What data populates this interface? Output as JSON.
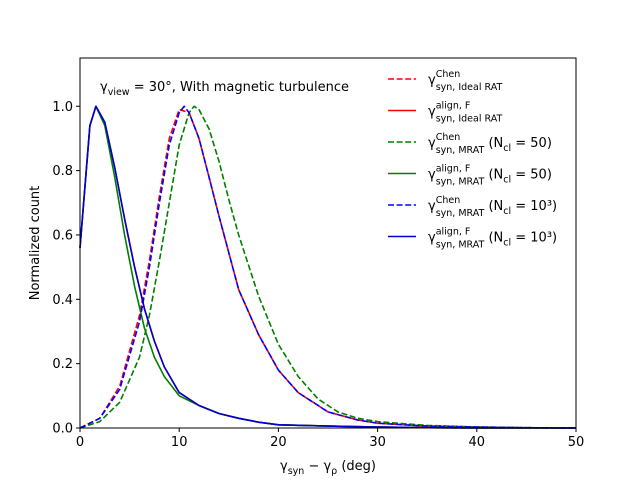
{
  "chart_data": {
    "type": "line",
    "xlim": [
      0,
      50
    ],
    "ylim": [
      0,
      1.15
    ],
    "xticks": [
      0,
      10,
      20,
      30,
      40,
      50
    ],
    "yticks": [
      0.0,
      0.2,
      0.4,
      0.6,
      0.8,
      1.0
    ],
    "xtick_labels": [
      "0",
      "10",
      "20",
      "30",
      "40",
      "50"
    ],
    "ytick_labels": [
      "0.0",
      "0.2",
      "0.4",
      "0.6",
      "0.8",
      "1.0"
    ],
    "xlabel": {
      "main": "γ",
      "s1": "syn",
      "mid": " − γ",
      "s2": "ρ",
      "tail": " (deg)"
    },
    "ylabel": "Normalized count",
    "annotation": {
      "main": "γ",
      "sub": "view",
      "tail": " = 30°, With magnetic turbulence"
    },
    "legend_position": "top-right",
    "series": [
      {
        "name_sup": "Chen",
        "name_sub": "syn, Ideal RAT",
        "name_tail": "",
        "color": "#ff0000",
        "dash": true,
        "x": [
          0,
          2,
          4,
          6,
          7,
          8,
          9,
          10,
          11,
          12,
          13,
          14,
          16,
          18,
          20,
          22,
          25,
          28,
          30,
          35,
          40,
          45,
          50
        ],
        "y": [
          0,
          0.03,
          0.13,
          0.35,
          0.52,
          0.72,
          0.9,
          0.99,
          0.98,
          0.9,
          0.78,
          0.66,
          0.43,
          0.29,
          0.18,
          0.11,
          0.05,
          0.025,
          0.015,
          0.006,
          0.003,
          0.001,
          0.0
        ]
      },
      {
        "name_sup": "align, F",
        "name_sub": "syn, Ideal RAT",
        "name_tail": "",
        "color": "#ff0000",
        "dash": false,
        "x": [
          0,
          1,
          1.6,
          2.5,
          3.5,
          4.5,
          5.5,
          6.5,
          7.5,
          8.5,
          10,
          12,
          14,
          16,
          18,
          20,
          25,
          30,
          35,
          40,
          45,
          50
        ],
        "y": [
          0.56,
          0.94,
          1.0,
          0.95,
          0.81,
          0.65,
          0.5,
          0.37,
          0.27,
          0.19,
          0.11,
          0.07,
          0.045,
          0.03,
          0.018,
          0.01,
          0.006,
          0.003,
          0.001,
          0.0,
          0.0,
          0.0
        ]
      },
      {
        "name_sup": "Chen",
        "name_sub": "syn, MRAT",
        "name_tail": " (N",
        "name_sub2": "cl",
        "name_tail2": " = 50)",
        "color": "#008000",
        "dash": true,
        "x": [
          0,
          2,
          4,
          6,
          7,
          8,
          9,
          10,
          11,
          11.5,
          12,
          13,
          14,
          15,
          16,
          18,
          20,
          22,
          24,
          26,
          28,
          30,
          32,
          35,
          40,
          45,
          50
        ],
        "y": [
          0,
          0.02,
          0.08,
          0.22,
          0.35,
          0.52,
          0.7,
          0.88,
          0.98,
          1.0,
          0.99,
          0.93,
          0.83,
          0.71,
          0.6,
          0.41,
          0.26,
          0.16,
          0.09,
          0.05,
          0.03,
          0.02,
          0.015,
          0.008,
          0.003,
          0.001,
          0.0
        ]
      },
      {
        "name_sup": "align, F",
        "name_sub": "syn, MRAT",
        "name_tail": " (N",
        "name_sub2": "cl",
        "name_tail2": " = 50)",
        "color": "#008000",
        "dash": false,
        "x": [
          0,
          1,
          1.6,
          2.5,
          3.5,
          4.5,
          5.5,
          6.5,
          7.5,
          8.5,
          10,
          12,
          14,
          16,
          18,
          20,
          25,
          30,
          35,
          40,
          45,
          50
        ],
        "y": [
          0.56,
          0.94,
          1.0,
          0.94,
          0.78,
          0.6,
          0.44,
          0.31,
          0.22,
          0.16,
          0.1,
          0.07,
          0.045,
          0.03,
          0.018,
          0.01,
          0.006,
          0.003,
          0.001,
          0.0,
          0.0,
          0.0
        ]
      },
      {
        "name_sup": "Chen",
        "name_sub": "syn, MRAT",
        "name_tail": " (N",
        "name_sub2": "cl",
        "name_tail2": " = 10³)",
        "color": "#0000ff",
        "dash": true,
        "x": [
          0,
          2,
          4,
          6,
          7,
          8,
          9,
          10,
          10.5,
          11,
          12,
          13,
          14,
          16,
          18,
          20,
          22,
          25,
          28,
          30,
          35,
          40,
          45,
          50
        ],
        "y": [
          0,
          0.03,
          0.12,
          0.33,
          0.5,
          0.7,
          0.88,
          0.98,
          1.0,
          0.98,
          0.9,
          0.78,
          0.66,
          0.43,
          0.29,
          0.18,
          0.11,
          0.05,
          0.025,
          0.015,
          0.006,
          0.003,
          0.001,
          0.0
        ]
      },
      {
        "name_sup": "align, F",
        "name_sub": "syn, MRAT",
        "name_tail": " (N",
        "name_sub2": "cl",
        "name_tail2": " = 10³)",
        "color": "#0000cd",
        "dash": false,
        "x": [
          0,
          1,
          1.6,
          2.5,
          3.5,
          4.5,
          5.5,
          6.5,
          7.5,
          8.5,
          10,
          12,
          14,
          16,
          18,
          20,
          25,
          30,
          35,
          40,
          45,
          50
        ],
        "y": [
          0.56,
          0.94,
          1.0,
          0.95,
          0.81,
          0.65,
          0.5,
          0.37,
          0.27,
          0.19,
          0.11,
          0.07,
          0.045,
          0.03,
          0.018,
          0.01,
          0.006,
          0.003,
          0.001,
          0.0,
          0.0,
          0.0
        ]
      }
    ]
  }
}
